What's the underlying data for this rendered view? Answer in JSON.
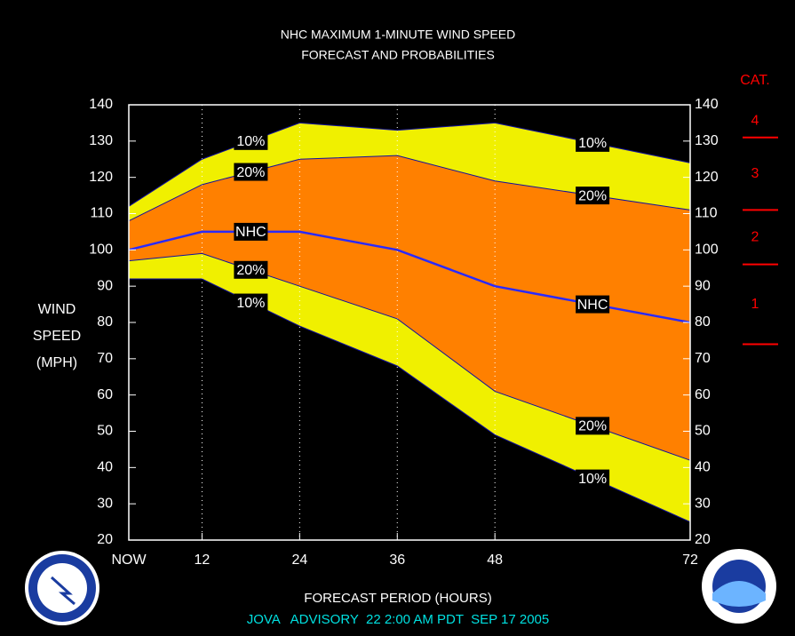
{
  "chart_data": {
    "type": "band",
    "title": [
      "NHC MAXIMUM 1-MINUTE WIND SPEED",
      "FORECAST AND PROBABILITIES"
    ],
    "x_label": "FORECAST PERIOD (HOURS)",
    "y_label": [
      "WIND",
      "SPEED",
      "(MPH)"
    ],
    "footer": "JOVA   ADVISORY  22 2:00 AM PDT  SEP 17 2005",
    "x": [
      3,
      12,
      24,
      36,
      48,
      72
    ],
    "xlim": [
      3,
      72
    ],
    "xticks": [
      {
        "value": 3,
        "label": "NOW"
      },
      12,
      24,
      36,
      48,
      72
    ],
    "ylim": [
      20,
      140
    ],
    "yticks": [
      20,
      30,
      40,
      50,
      60,
      70,
      80,
      90,
      100,
      110,
      120,
      130,
      140
    ],
    "grid": true,
    "series": [
      {
        "name": "10%",
        "color": "#f0f000",
        "values": [
          112,
          125,
          135,
          133,
          135,
          124
        ]
      },
      {
        "name": "20%",
        "color": "#ff8000",
        "values": [
          108,
          118,
          125,
          126,
          119,
          111
        ]
      },
      {
        "name": "NHC",
        "color": "#2a2aff",
        "values": [
          100,
          105,
          105,
          100,
          90,
          80
        ]
      },
      {
        "name": "20%",
        "color": "#ff8000",
        "values": [
          97,
          99,
          90,
          81,
          61,
          42
        ]
      },
      {
        "name": "10%",
        "color": "#f0f000",
        "values": [
          92,
          92,
          79,
          68,
          49,
          25
        ]
      }
    ],
    "category_scale": {
      "title": "CAT.",
      "labels": [
        "4",
        "3",
        "2",
        "1"
      ],
      "thresholds": [
        131,
        111,
        96,
        74
      ],
      "color": "#ff0000"
    }
  }
}
